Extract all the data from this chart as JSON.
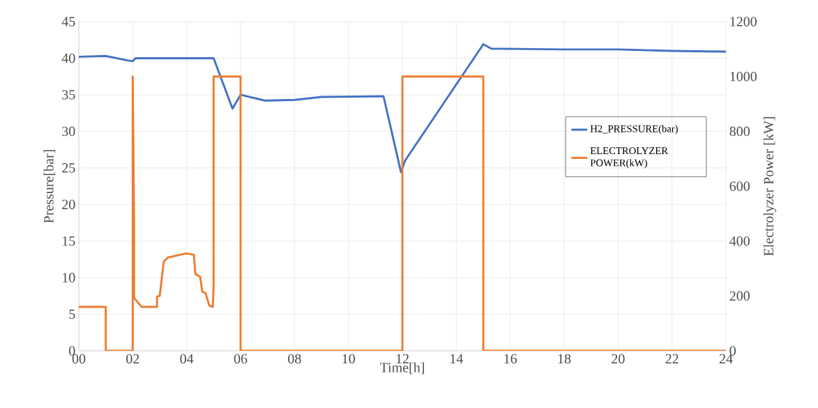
{
  "chart_data": {
    "type": "line",
    "xlabel": "Time[h]",
    "ylabel": "Pressure[bar]",
    "y2label": "Electrolyzer Power [kW]",
    "xlim": [
      0,
      24
    ],
    "xticks": [
      {
        "value": 0,
        "label": "00"
      },
      {
        "value": 2,
        "label": "02"
      },
      {
        "value": 4,
        "label": "04"
      },
      {
        "value": 6,
        "label": "06"
      },
      {
        "value": 8,
        "label": "08"
      },
      10,
      12,
      14,
      16,
      18,
      20,
      22,
      24
    ],
    "ylim": [
      0,
      45
    ],
    "yticks": [
      0,
      5,
      10,
      15,
      20,
      25,
      30,
      35,
      40,
      45
    ],
    "y2lim": [
      0,
      1200
    ],
    "y2ticks": [
      0,
      200,
      400,
      600,
      800,
      1000,
      1200
    ],
    "grid": true,
    "legend": "right",
    "marker": "none",
    "line_style": "solid",
    "series": [
      {
        "name": "H2_PRESSURE(bar)",
        "color": "#4472c4",
        "x": [
          0,
          1,
          1.8,
          2.0,
          2.1,
          3,
          4.5,
          5.0,
          5.7,
          6.0,
          6.9,
          8,
          9,
          11.3,
          11.95,
          12.1,
          15.0,
          15.3,
          18,
          20,
          22,
          24
        ],
        "values": [
          40.2,
          40.3,
          39.7,
          39.6,
          40.0,
          40.0,
          40.0,
          40.0,
          33.1,
          35.0,
          34.2,
          34.3,
          34.7,
          34.8,
          24.4,
          26,
          41.9,
          41.3,
          41.2,
          41.2,
          41.0,
          40.9
        ]
      },
      {
        "name": "ELECTROLYZER POWER(kW)",
        "color": "#ed7d31",
        "axis": "y2",
        "x": [
          0,
          1.0,
          1.0,
          2.0,
          2.0,
          2.05,
          2.05,
          2.33,
          2.9,
          2.9,
          3.0,
          3.15,
          3.3,
          3.98,
          4.27,
          4.32,
          4.5,
          4.58,
          4.7,
          4.84,
          4.97,
          5.0,
          5.0,
          6.0,
          6.0,
          12.0,
          12.0,
          15.0,
          15.0,
          24
        ],
        "values": [
          160,
          160,
          0,
          0,
          1000,
          465,
          193,
          160,
          160,
          198,
          200,
          325,
          340,
          355,
          350,
          280,
          270,
          216,
          210,
          165,
          160,
          244,
          1000,
          1000,
          0,
          0,
          1000,
          1000,
          0,
          0
        ]
      }
    ]
  }
}
